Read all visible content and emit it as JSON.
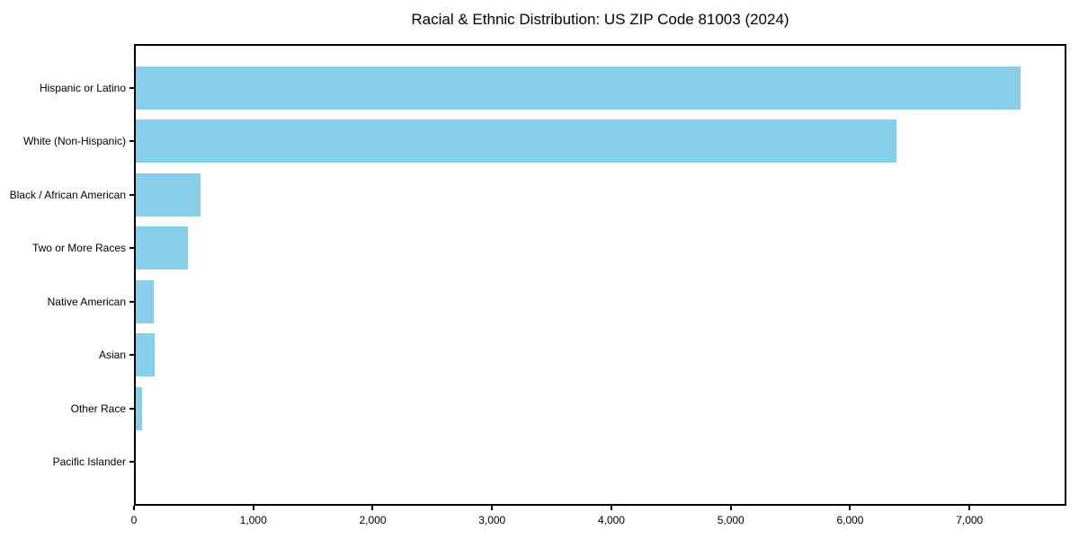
{
  "title": "Racial & Ethnic Distribution: US ZIP Code 81003 (2024)",
  "colors": {
    "bar": "#87CEEB",
    "spine": "#000000",
    "text": "#000000",
    "background": "#FFFFFF"
  },
  "chart_data": {
    "type": "bar",
    "orientation": "horizontal",
    "title": "Racial & Ethnic Distribution: US ZIP Code 81003 (2024)",
    "categories": [
      "Hispanic or Latino",
      "White (Non-Hispanic)",
      "Black / African American",
      "Two or More Races",
      "Native American",
      "Asian",
      "Other Race",
      "Pacific Islander"
    ],
    "values": [
      7440,
      6400,
      548,
      435,
      152,
      158,
      50,
      0
    ],
    "xlabel": "",
    "ylabel": "",
    "xlim": [
      0,
      7812
    ],
    "xticks": [
      0,
      1000,
      2000,
      3000,
      4000,
      5000,
      6000,
      7000
    ],
    "xtick_labels": [
      "0",
      "1,000",
      "2,000",
      "3,000",
      "4,000",
      "5,000",
      "6,000",
      "7,000"
    ],
    "grid": false,
    "legend": null,
    "bar_color": "#87CEEB"
  }
}
